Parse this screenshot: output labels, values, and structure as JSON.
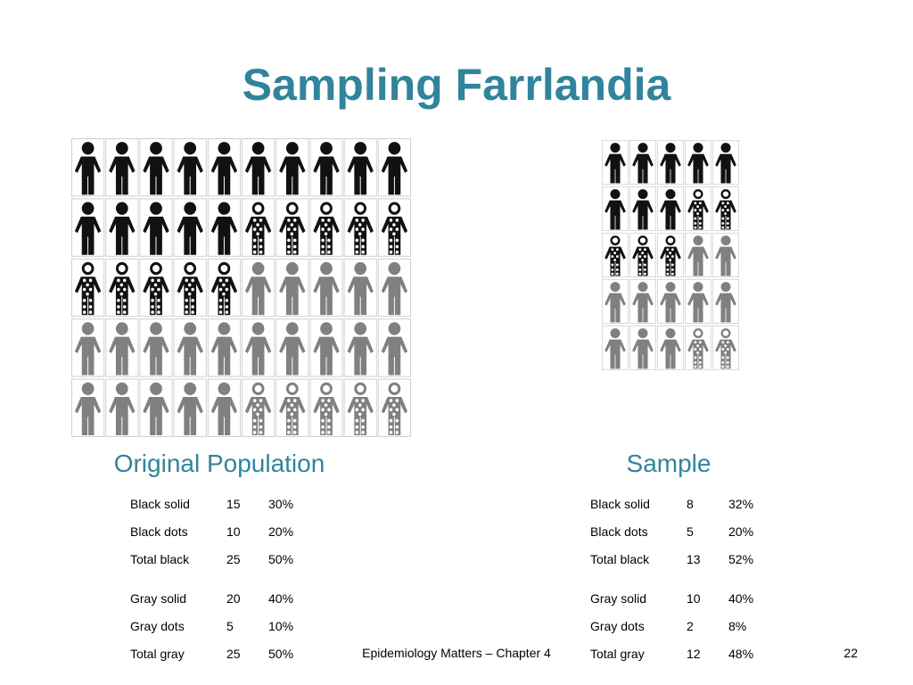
{
  "title": "Sampling Farrlandia",
  "panels": [
    {
      "heading": "Original Population",
      "rows": [
        [
          "Black solid",
          "15",
          "30%"
        ],
        [
          "Black dots",
          "10",
          "20%"
        ],
        [
          "Total black",
          "25",
          "50%"
        ],
        [
          "Gray solid",
          "20",
          "40%"
        ],
        [
          "Gray dots",
          "5",
          "10%"
        ],
        [
          "Total gray",
          "25",
          "50%"
        ]
      ]
    },
    {
      "heading": "Sample",
      "rows": [
        [
          "Black solid",
          "8",
          "32%"
        ],
        [
          "Black dots",
          "5",
          "20%"
        ],
        [
          "Total black",
          "13",
          "52%"
        ],
        [
          "Gray solid",
          "10",
          "40%"
        ],
        [
          "Gray dots",
          "2",
          "8%"
        ],
        [
          "Total gray",
          "12",
          "48%"
        ]
      ]
    }
  ],
  "footer": "Epidemiology Matters – Chapter 4",
  "page_number": "22"
}
